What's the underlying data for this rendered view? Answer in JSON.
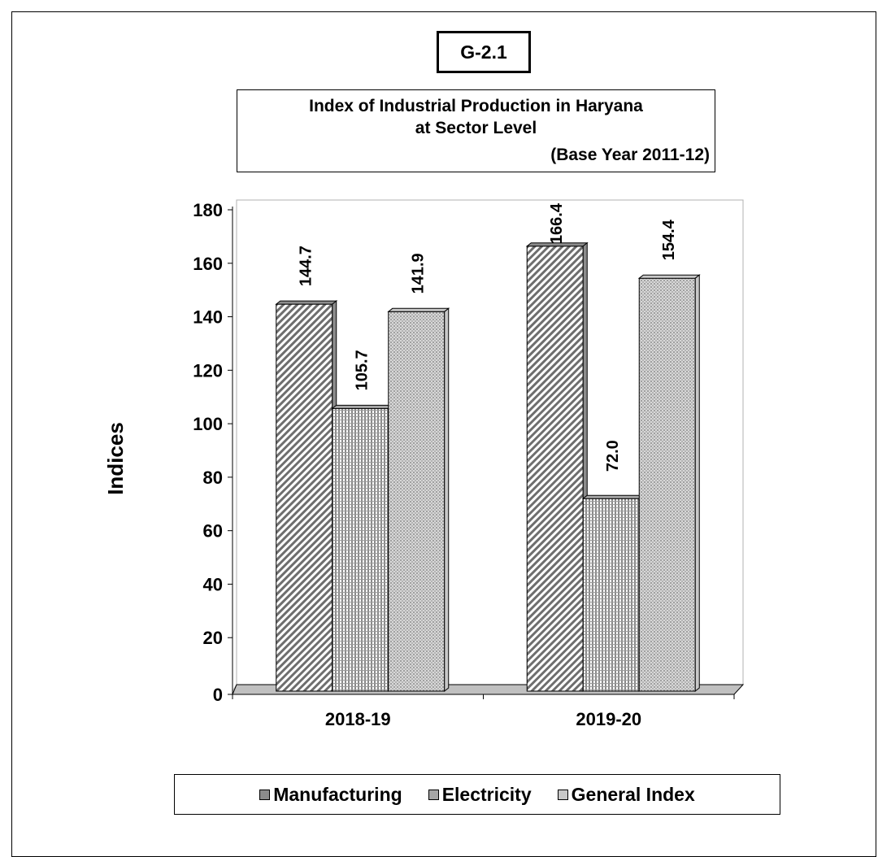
{
  "figure_id": "G-2.1",
  "chart_data": {
    "type": "bar",
    "title_line1": "Index of Industrial Production in Haryana",
    "title_line2": "at Sector Level",
    "subtitle": "(Base Year 2011-12)",
    "xlabel": "",
    "ylabel": "Indices",
    "categories": [
      "2018-19",
      "2019-20"
    ],
    "series": [
      {
        "name": "Manufacturing",
        "values": [
          144.7,
          166.4
        ],
        "labels": [
          "144.7",
          "166.4"
        ],
        "color": "#8c8c8c",
        "pattern": "diag"
      },
      {
        "name": "Electricity",
        "values": [
          105.7,
          72.0
        ],
        "labels": [
          "105.7",
          "72.0"
        ],
        "color": "#a6a6a6",
        "pattern": "grid"
      },
      {
        "name": "General Index",
        "values": [
          141.9,
          154.4
        ],
        "labels": [
          "141.9",
          "154.4"
        ],
        "color": "#c8c8c8",
        "pattern": "dots"
      }
    ],
    "ylim": [
      0,
      180
    ],
    "yticks": [
      0,
      20,
      40,
      60,
      80,
      100,
      120,
      140,
      160,
      180
    ],
    "grid": false,
    "legend": "bottom",
    "background": "#ffffff",
    "floor_color": "#c0c0c0"
  }
}
